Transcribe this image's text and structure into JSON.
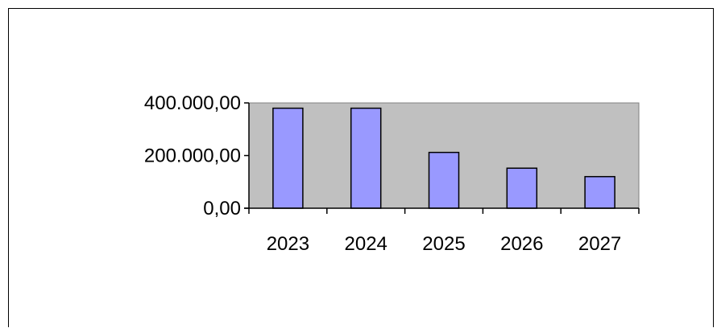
{
  "chart_data": {
    "type": "bar",
    "title": "",
    "xlabel": "",
    "ylabel": "",
    "categories": [
      "2023",
      "2024",
      "2025",
      "2026",
      "2027"
    ],
    "values": [
      380000,
      380000,
      212000,
      152000,
      120000
    ],
    "ylim": [
      0,
      400000
    ],
    "yticks": [
      0,
      200000,
      400000
    ],
    "ytick_labels": [
      "0,00",
      "200.000,00",
      "400.000,00"
    ],
    "grid": false,
    "legend": "none",
    "colors": {
      "plot_background": "#c0c0c0",
      "bar_fill": "#9999ff",
      "bar_stroke": "#000000",
      "axis": "#000000"
    }
  }
}
